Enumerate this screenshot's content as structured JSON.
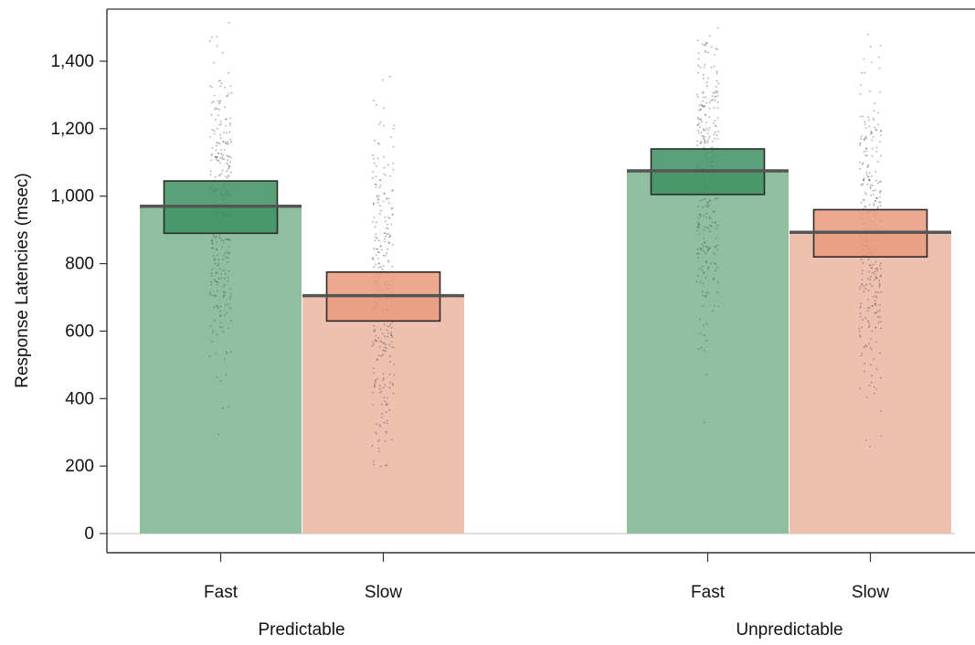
{
  "chart_data": {
    "type": "bar",
    "title": "",
    "ylabel": "Response Latencies (msec)",
    "xlabel": "",
    "ylim": [
      0,
      1550
    ],
    "yticks": [
      0,
      200,
      400,
      600,
      800,
      1000,
      1200,
      1400
    ],
    "ytick_labels": [
      "0",
      "200",
      "400",
      "600",
      "800",
      "1,000",
      "1,200",
      "1,400"
    ],
    "groups": [
      "Predictable",
      "Unpredictable"
    ],
    "categories": [
      "Fast",
      "Slow"
    ],
    "series": [
      {
        "group": "Predictable",
        "category": "Fast",
        "mean": 970,
        "ci_low": 890,
        "ci_high": 1045,
        "color": "#8fbf9f",
        "ci_color": "#3d9161"
      },
      {
        "group": "Predictable",
        "category": "Slow",
        "mean": 705,
        "ci_low": 630,
        "ci_high": 775,
        "color": "#edc0b0",
        "ci_color": "#e99a7d"
      },
      {
        "group": "Unpredictable",
        "category": "Fast",
        "mean": 1075,
        "ci_low": 1005,
        "ci_high": 1140,
        "color": "#8fbf9f",
        "ci_color": "#3d9161"
      },
      {
        "group": "Unpredictable",
        "category": "Slow",
        "mean": 893,
        "ci_low": 820,
        "ci_high": 960,
        "color": "#edc0b0",
        "ci_color": "#e99a7d"
      }
    ],
    "raw_points_shown": true,
    "grid": false,
    "legend": "none"
  }
}
